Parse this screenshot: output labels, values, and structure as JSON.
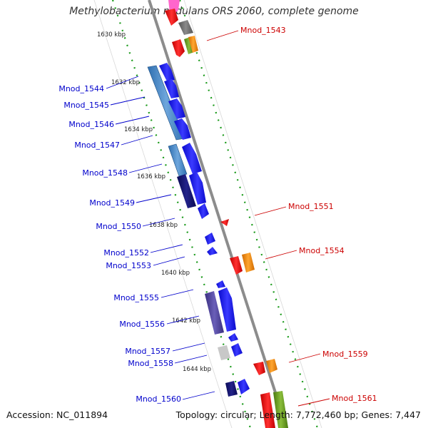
{
  "title": "Methylobacterium nodulans ORS 2060, complete genome",
  "footer": {
    "accession": "Accession: NC_011894",
    "summary": "Topology: circular; Length: 7,772,460 bp; Genes: 7,447"
  },
  "colors": {
    "forward_label": "#0000cc",
    "reverse_label": "#cc0000",
    "backbone": "#8c8c8c",
    "tick": "#1a9a1a",
    "gene_blue": "#1a1aee",
    "gene_red": "#ee1111",
    "gene_orange": "#ee8800"
  },
  "scale_ticks": [
    "1630 kbp",
    "1632 kbp",
    "1634 kbp",
    "1636 kbp",
    "1638 kbp",
    "1640 kbp",
    "1642 kbp",
    "1644 kbp"
  ],
  "forward_genes": [
    "Mnod_1544",
    "Mnod_1545",
    "Mnod_1546",
    "Mnod_1547",
    "Mnod_1548",
    "Mnod_1549",
    "Mnod_1550",
    "Mnod_1552",
    "Mnod_1553",
    "Mnod_1555",
    "Mnod_1556",
    "Mnod_1557",
    "Mnod_1558",
    "Mnod_1560"
  ],
  "reverse_genes": [
    "Mnod_1543",
    "Mnod_1551",
    "Mnod_1554",
    "Mnod_1559",
    "Mnod_1561"
  ]
}
